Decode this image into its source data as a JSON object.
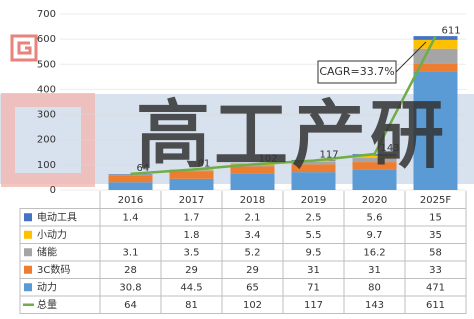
{
  "chart_data": {
    "type": "bar",
    "categories": [
      "2016",
      "2017",
      "2018",
      "2019",
      "2020",
      "2025F"
    ],
    "series": [
      {
        "name": "电动工具",
        "color": "#4472c4",
        "values": [
          1.4,
          1.7,
          2.1,
          2.5,
          5.6,
          15
        ]
      },
      {
        "name": "小动力",
        "color": "#ffc000",
        "values": [
          null,
          1.8,
          3.4,
          5.5,
          9.7,
          35
        ]
      },
      {
        "name": "储能",
        "color": "#a5a5a5",
        "values": [
          3.1,
          3.5,
          5.2,
          9.5,
          16.2,
          58
        ]
      },
      {
        "name": "3C数码",
        "color": "#ed7d31",
        "values": [
          28,
          29,
          29,
          31,
          31,
          33
        ]
      },
      {
        "name": "动力",
        "color": "#5b9bd5",
        "values": [
          30.8,
          44.5,
          65,
          71,
          80,
          471
        ]
      },
      {
        "name": "总量",
        "color": "#70ad47",
        "type": "line",
        "values": [
          64,
          81,
          102,
          117,
          143,
          611
        ]
      }
    ],
    "ylim": [
      0,
      700
    ],
    "yticks": [
      0,
      100,
      200,
      300,
      400,
      500,
      600,
      700
    ],
    "annotation": "CAGR=33.7%",
    "watermark": "高工产研"
  }
}
